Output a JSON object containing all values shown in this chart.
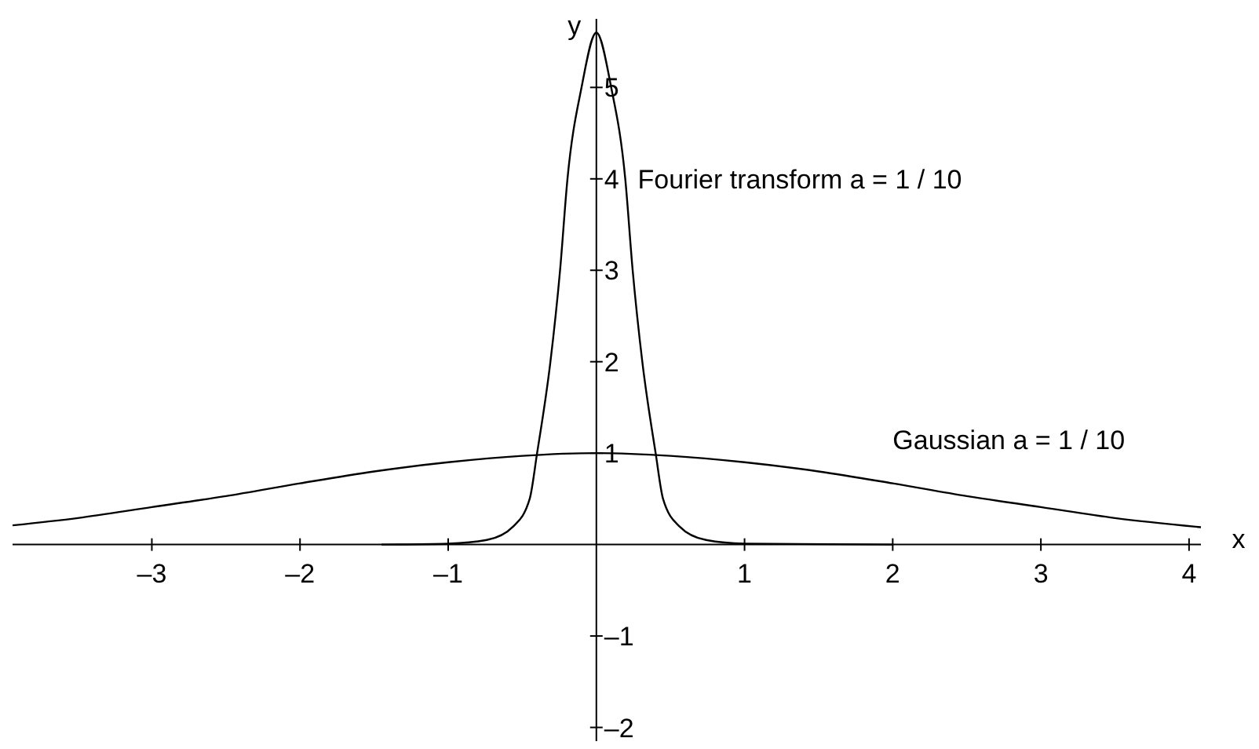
{
  "chart_data": {
    "type": "line",
    "xlabel": "x",
    "ylabel": "y",
    "xlim": [
      -3.94,
      4.08
    ],
    "ylim": [
      -2.15,
      5.75
    ],
    "xticks": [
      {
        "value": -3,
        "label": "–3"
      },
      {
        "value": -2,
        "label": "–2"
      },
      {
        "value": -1,
        "label": "–1"
      },
      1,
      2,
      3,
      4
    ],
    "yticks": [
      {
        "value": -2,
        "label": "–2"
      },
      {
        "value": -1,
        "label": "–1"
      },
      1,
      2,
      3,
      4,
      5
    ],
    "grid": false,
    "marker": "none",
    "line_style": "solid",
    "series": [
      {
        "name": "Gaussian a = 1 / 10",
        "color": "#000000",
        "x": [
          -3.94,
          -3.5,
          -3,
          -2.5,
          -2,
          -1.5,
          -1,
          -0.5,
          0,
          0.5,
          1,
          1.5,
          2,
          2.5,
          3,
          3.5,
          4.08
        ],
        "values": [
          0.21,
          0.29,
          0.41,
          0.53,
          0.67,
          0.8,
          0.9,
          0.97,
          1,
          0.97,
          0.9,
          0.8,
          0.67,
          0.53,
          0.41,
          0.29,
          0.19
        ]
      },
      {
        "name": "Fourier transform a = 1 / 10",
        "color": "#000000",
        "x": [
          -1.45,
          -1,
          -0.74,
          -0.56,
          -0.45,
          -0.4,
          -0.31,
          -0.245,
          -0.195,
          -0.1,
          0,
          0.1,
          0.195,
          0.245,
          0.31,
          0.4,
          0.45,
          0.56,
          0.74,
          1,
          2
        ],
        "values": [
          0,
          0.01,
          0.05,
          0.2,
          0.5,
          1,
          2,
          3,
          4,
          5,
          5.6,
          5,
          4,
          3,
          2,
          1,
          0.5,
          0.2,
          0.05,
          0.01,
          0
        ]
      }
    ]
  }
}
